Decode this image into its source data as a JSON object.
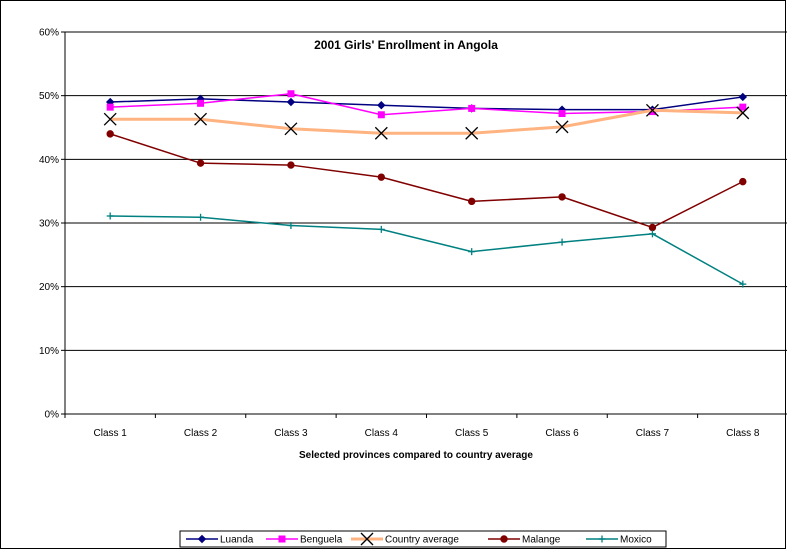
{
  "chart_data": {
    "type": "line",
    "title": "2001 Girls' Enrollment in Angola",
    "xlabel": "Selected provinces compared to country average",
    "ylabel": "",
    "ylim": [
      0,
      60
    ],
    "y_ticks": [
      "0%",
      "10%",
      "20%",
      "30%",
      "40%",
      "50%",
      "60%"
    ],
    "categories": [
      "Class 1",
      "Class 2",
      "Class 3",
      "Class 4",
      "Class 5",
      "Class 6",
      "Class 7",
      "Class 8"
    ],
    "grid": "horizontal",
    "legend_position": "bottom",
    "series": [
      {
        "name": "Luanda",
        "color": "#000080",
        "marker": "diamond",
        "values": [
          49.0,
          49.5,
          49.0,
          48.5,
          48.0,
          47.8,
          47.8,
          49.8
        ]
      },
      {
        "name": "Benguela",
        "color": "#FF00FF",
        "marker": "square",
        "values": [
          48.2,
          48.8,
          50.3,
          47.0,
          48.0,
          47.2,
          47.5,
          48.2
        ]
      },
      {
        "name": "Country average",
        "color": "#FFB380",
        "marker": "x",
        "values": [
          46.3,
          46.3,
          44.8,
          44.1,
          44.1,
          45.1,
          47.7,
          47.3
        ]
      },
      {
        "name": "Malange",
        "color": "#800000",
        "marker": "circle",
        "values": [
          44.0,
          39.4,
          39.1,
          37.2,
          33.4,
          34.1,
          29.3,
          36.5
        ]
      },
      {
        "name": "Moxico",
        "color": "#008080",
        "marker": "plus",
        "values": [
          31.1,
          30.9,
          29.6,
          29.0,
          25.5,
          27.0,
          28.3,
          20.4
        ]
      }
    ]
  }
}
